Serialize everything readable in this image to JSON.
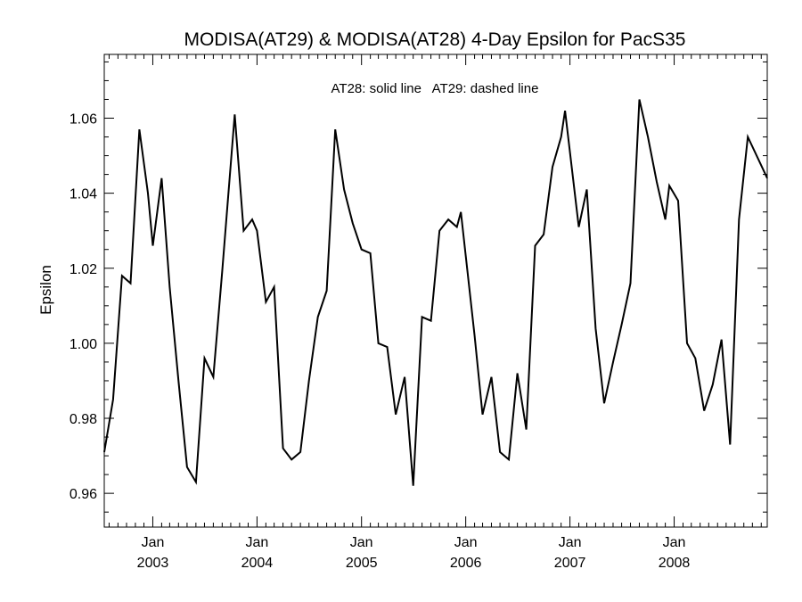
{
  "chart_data": {
    "type": "line",
    "title": "MODISA(AT29) & MODISA(AT28) 4-Day Epsilon for PacS35",
    "xlabel": "",
    "ylabel": "Epsilon",
    "annotation": "AT28: solid line   AT29: dashed line",
    "xlim": [
      "2002-07-15",
      "2008-11-22"
    ],
    "ylim": [
      0.951,
      1.077
    ],
    "grid": false,
    "y_ticks": [
      "0.96",
      "0.98",
      "1.00",
      "1.02",
      "1.04",
      "1.06"
    ],
    "x_ticks": [
      {
        "date": "2003-01-01",
        "month": "Jan",
        "year": "2003"
      },
      {
        "date": "2004-01-01",
        "month": "Jan",
        "year": "2004"
      },
      {
        "date": "2005-01-01",
        "month": "Jan",
        "year": "2005"
      },
      {
        "date": "2006-01-01",
        "month": "Jan",
        "year": "2006"
      },
      {
        "date": "2007-01-01",
        "month": "Jan",
        "year": "2007"
      },
      {
        "date": "2008-01-01",
        "month": "Jan",
        "year": "2008"
      }
    ],
    "series": [
      {
        "style": "solid",
        "points": [
          [
            "2002-07-15",
            0.971
          ],
          [
            "2002-08-15",
            0.985
          ],
          [
            "2002-09-15",
            1.018
          ],
          [
            "2002-10-15",
            1.016
          ],
          [
            "2002-11-15",
            1.057
          ],
          [
            "2002-12-15",
            1.04
          ],
          [
            "2003-01-01",
            1.026
          ],
          [
            "2003-02-01",
            1.044
          ],
          [
            "2003-03-01",
            1.015
          ],
          [
            "2003-04-01",
            0.99
          ],
          [
            "2003-05-01",
            0.967
          ],
          [
            "2003-06-01",
            0.963
          ],
          [
            "2003-07-01",
            0.996
          ],
          [
            "2003-08-01",
            0.991
          ],
          [
            "2003-09-01",
            1.019
          ],
          [
            "2003-10-15",
            1.061
          ],
          [
            "2003-11-15",
            1.03
          ],
          [
            "2003-12-15",
            1.033
          ],
          [
            "2004-01-01",
            1.03
          ],
          [
            "2004-02-01",
            1.011
          ],
          [
            "2004-03-01",
            1.015
          ],
          [
            "2004-04-01",
            0.972
          ],
          [
            "2004-05-01",
            0.969
          ],
          [
            "2004-06-01",
            0.971
          ],
          [
            "2004-07-01",
            0.99
          ],
          [
            "2004-08-01",
            1.007
          ],
          [
            "2004-09-01",
            1.014
          ],
          [
            "2004-10-01",
            1.057
          ],
          [
            "2004-11-01",
            1.041
          ],
          [
            "2004-12-01",
            1.032
          ],
          [
            "2005-01-01",
            1.025
          ],
          [
            "2005-02-01",
            1.024
          ],
          [
            "2005-03-01",
            1.0
          ],
          [
            "2005-04-01",
            0.999
          ],
          [
            "2005-05-01",
            0.981
          ],
          [
            "2005-06-01",
            0.991
          ],
          [
            "2005-07-01",
            0.962
          ],
          [
            "2005-08-01",
            1.007
          ],
          [
            "2005-09-01",
            1.006
          ],
          [
            "2005-10-01",
            1.03
          ],
          [
            "2005-11-01",
            1.033
          ],
          [
            "2005-12-01",
            1.031
          ],
          [
            "2005-12-15",
            1.035
          ],
          [
            "2006-02-01",
            1.002
          ],
          [
            "2006-03-01",
            0.981
          ],
          [
            "2006-04-01",
            0.991
          ],
          [
            "2006-05-01",
            0.971
          ],
          [
            "2006-06-01",
            0.969
          ],
          [
            "2006-07-01",
            0.992
          ],
          [
            "2006-08-01",
            0.977
          ],
          [
            "2006-09-01",
            1.026
          ],
          [
            "2006-10-01",
            1.029
          ],
          [
            "2006-11-01",
            1.047
          ],
          [
            "2006-12-01",
            1.055
          ],
          [
            "2006-12-15",
            1.062
          ],
          [
            "2007-02-01",
            1.031
          ],
          [
            "2007-03-01",
            1.041
          ],
          [
            "2007-04-01",
            1.004
          ],
          [
            "2007-05-01",
            0.984
          ],
          [
            "2007-06-01",
            0.995
          ],
          [
            "2007-07-01",
            1.005
          ],
          [
            "2007-08-01",
            1.016
          ],
          [
            "2007-09-01",
            1.065
          ],
          [
            "2007-10-01",
            1.055
          ],
          [
            "2007-11-01",
            1.043
          ],
          [
            "2007-12-01",
            1.033
          ],
          [
            "2007-12-15",
            1.042
          ],
          [
            "2008-01-15",
            1.038
          ],
          [
            "2008-02-15",
            1.0
          ],
          [
            "2008-03-15",
            0.996
          ],
          [
            "2008-04-15",
            0.982
          ],
          [
            "2008-05-15",
            0.989
          ],
          [
            "2008-06-15",
            1.001
          ],
          [
            "2008-07-15",
            0.973
          ],
          [
            "2008-08-15",
            1.033
          ],
          [
            "2008-09-15",
            1.055
          ],
          [
            "2008-11-22",
            1.044
          ]
        ]
      }
    ]
  }
}
